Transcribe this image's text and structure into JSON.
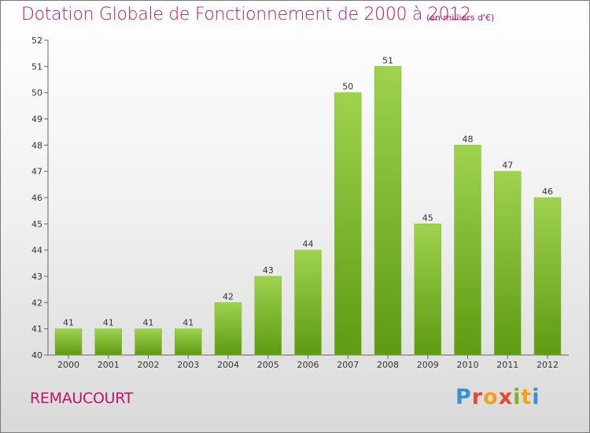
{
  "header": {
    "title": "Dotation Globale de Fonctionnement de 2000 à 2012",
    "subtitle": "(en milliers d'€)"
  },
  "footer": {
    "commune": "REMAUCOURT",
    "logo_text": "Proxiti"
  },
  "colors": {
    "title": "#c0136b",
    "bar_top": "#9fd24f",
    "bar_bottom": "#5e9a12",
    "logo": [
      "#3a8fd0",
      "#e8462e",
      "#f2a21a",
      "#7ab51d"
    ]
  },
  "chart_data": {
    "type": "bar",
    "title": "Dotation Globale de Fonctionnement de 2000 à 2012",
    "subtitle": "(en milliers d'€)",
    "xlabel": "",
    "ylabel": "",
    "categories": [
      "2000",
      "2001",
      "2002",
      "2003",
      "2004",
      "2005",
      "2006",
      "2007",
      "2008",
      "2009",
      "2010",
      "2011",
      "2012"
    ],
    "values": [
      41,
      41,
      41,
      41,
      42,
      43,
      44,
      50,
      51,
      45,
      48,
      47,
      46
    ],
    "ylim": [
      40,
      52
    ],
    "yticks": [
      40,
      41,
      42,
      43,
      44,
      45,
      46,
      47,
      48,
      49,
      50,
      51,
      52
    ],
    "grid": false,
    "legend": "none"
  }
}
